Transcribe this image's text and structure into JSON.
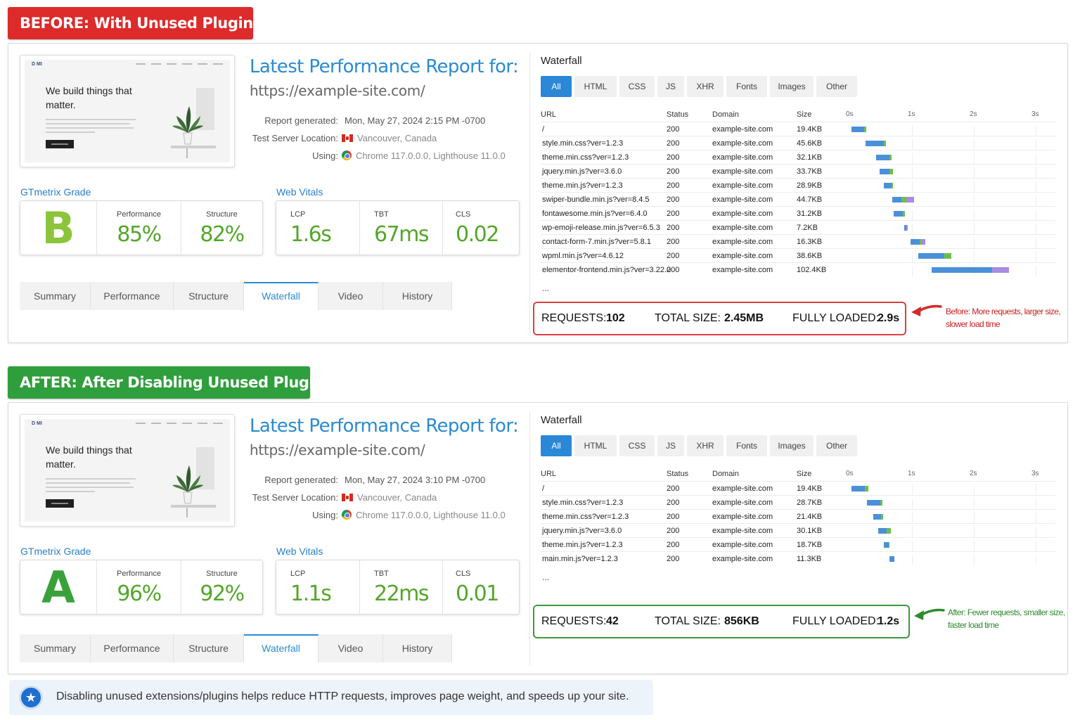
{
  "before": {
    "banner": "BEFORE: With Unused Plugins",
    "report": {
      "thumb": {
        "logo": "D MI",
        "headline": "We build things that matter."
      },
      "title": "Latest Performance Report for:",
      "url": "https://example-site.com/",
      "meta": [
        {
          "label": "Report generated:",
          "value": "Mon, May 27, 2024 2:15 PM -0700"
        },
        {
          "label": "Test Server Location:",
          "value": "Vancouver, Canada"
        },
        {
          "label": "Using:",
          "value": "Chrome 117.0.0.0, Lighthouse 11.0.0"
        }
      ],
      "grade_label": "GTmetrix Grade",
      "grade": "B",
      "performance_label": "Performance",
      "performance": "85%",
      "structure_label": "Structure",
      "structure": "82%",
      "vitals_label": "Web Vitals",
      "lcp_label": "LCP",
      "lcp": "1.6s",
      "tbt_label": "TBT",
      "tbt": "67ms",
      "cls_label": "CLS",
      "cls": "0.02",
      "tabs": [
        "Summary",
        "Performance",
        "Structure",
        "Waterfall",
        "Video",
        "History"
      ],
      "active_tab": "Waterfall"
    },
    "waterfall": {
      "title": "Waterfall",
      "filters": [
        "All",
        "HTML",
        "CSS",
        "JS",
        "XHR",
        "Fonts",
        "Images",
        "Other"
      ],
      "columns": [
        "URL",
        "Status",
        "Domain",
        "Size"
      ],
      "ticks": [
        "0s",
        "1s",
        "2s",
        "3s"
      ],
      "rows": [
        {
          "url": "/",
          "status": "200",
          "domain": "example-site.com",
          "size": "19.4KB",
          "start": 0.02,
          "segments": [
            [
              0.21,
              "b"
            ],
            [
              0.03,
              "g"
            ]
          ]
        },
        {
          "url": "style.min.css?ver=1.2.3",
          "status": "200",
          "domain": "example-site.com",
          "size": "45.6KB",
          "start": 0.25,
          "segments": [
            [
              0.3,
              "b"
            ],
            [
              0.03,
              "g"
            ]
          ]
        },
        {
          "url": "theme.min.css?ver=1.2.3",
          "status": "200",
          "domain": "example-site.com",
          "size": "32.1KB",
          "start": 0.42,
          "segments": [
            [
              0.22,
              "b"
            ],
            [
              0.03,
              "g"
            ]
          ]
        },
        {
          "url": "jquery.min.js?ver=3.6.0",
          "status": "200",
          "domain": "example-site.com",
          "size": "33.7KB",
          "start": 0.48,
          "segments": [
            [
              0.16,
              "b"
            ],
            [
              0.05,
              "g"
            ]
          ]
        },
        {
          "url": "theme.min.js?ver=1.2.3",
          "status": "200",
          "domain": "example-site.com",
          "size": "28.9KB",
          "start": 0.55,
          "segments": [
            [
              0.12,
              "b"
            ],
            [
              0.02,
              "g"
            ]
          ]
        },
        {
          "url": "swiper-bundle.min.js?ver=8.4.5",
          "status": "200",
          "domain": "example-site.com",
          "size": "44.7KB",
          "start": 0.68,
          "segments": [
            [
              0.15,
              "b"
            ],
            [
              0.08,
              "g"
            ],
            [
              0.13,
              "p"
            ]
          ]
        },
        {
          "url": "fontawesome.min.js?ver=6.4.0",
          "status": "200",
          "domain": "example-site.com",
          "size": "31.2KB",
          "start": 0.7,
          "segments": [
            [
              0.15,
              "b"
            ],
            [
              0.04,
              "g"
            ]
          ]
        },
        {
          "url": "wp-emoji-release.min.js?ver=6.5.3",
          "status": "200",
          "domain": "example-site.com",
          "size": "7.2KB",
          "start": 0.88,
          "segments": [
            [
              0.03,
              "b"
            ],
            [
              0.02,
              "p"
            ]
          ]
        },
        {
          "url": "contact-form-7.min.js?ver=5.8.1",
          "status": "200",
          "domain": "example-site.com",
          "size": "16.3KB",
          "start": 0.98,
          "segments": [
            [
              0.14,
              "b"
            ],
            [
              0.04,
              "g"
            ],
            [
              0.06,
              "p"
            ]
          ]
        },
        {
          "url": "wpml.min.js?ver=4.6.12",
          "status": "200",
          "domain": "example-site.com",
          "size": "38.6KB",
          "start": 1.1,
          "segments": [
            [
              0.42,
              "b"
            ],
            [
              0.12,
              "g"
            ]
          ]
        },
        {
          "url": "elementor-frontend.min.js?ver=3.22.0",
          "status": "200",
          "domain": "example-site.com",
          "size": "102.4KB",
          "start": 1.32,
          "segments": [
            [
              0.97,
              "b"
            ],
            [
              0.28,
              "p"
            ]
          ]
        }
      ],
      "more": "..."
    },
    "summary": {
      "requests_label": "REQUESTS:",
      "requests": "102",
      "size_label": "TOTAL SIZE:",
      "size": "2.45MB",
      "loaded_label": "FULLY LOADED:",
      "loaded": "2.9s"
    },
    "note": [
      "Before: More requests, larger size,",
      "slower load time"
    ]
  },
  "after": {
    "banner": "AFTER: After Disabling Unused Plugins",
    "report": {
      "thumb": {
        "logo": "D MI",
        "headline": "We build things that matter."
      },
      "title": "Latest Performance Report for:",
      "url": "https://example-site.com/",
      "meta": [
        {
          "label": "Report generated:",
          "value": "Mon, May 27, 2024 3:10 PM -0700"
        },
        {
          "label": "Test Server Location:",
          "value": "Vancouver, Canada"
        },
        {
          "label": "Using:",
          "value": "Chrome 117.0.0.0, Lighthouse 11.0.0"
        }
      ],
      "grade_label": "GTmetrix Grade",
      "grade": "A",
      "performance_label": "Performance",
      "performance": "96%",
      "structure_label": "Structure",
      "structure": "92%",
      "vitals_label": "Web Vitals",
      "lcp_label": "LCP",
      "lcp": "1.1s",
      "tbt_label": "TBT",
      "tbt": "22ms",
      "cls_label": "CLS",
      "cls": "0.01",
      "tabs": [
        "Summary",
        "Performance",
        "Structure",
        "Waterfall",
        "Video",
        "History"
      ],
      "active_tab": "Waterfall"
    },
    "waterfall": {
      "title": "Waterfall",
      "filters": [
        "All",
        "HTML",
        "CSS",
        "JS",
        "XHR",
        "Fonts",
        "Images",
        "Other"
      ],
      "columns": [
        "URL",
        "Status",
        "Domain",
        "Size"
      ],
      "ticks": [
        "0s",
        "1s",
        "2s",
        "3s"
      ],
      "rows": [
        {
          "url": "/",
          "status": "200",
          "domain": "example-site.com",
          "size": "19.4KB",
          "start": 0.02,
          "segments": [
            [
              0.22,
              "b"
            ],
            [
              0.05,
              "g"
            ]
          ]
        },
        {
          "url": "style.min.css?ver=1.2.3",
          "status": "200",
          "domain": "example-site.com",
          "size": "28.7KB",
          "start": 0.27,
          "segments": [
            [
              0.22,
              "b"
            ],
            [
              0.03,
              "g"
            ]
          ]
        },
        {
          "url": "theme.min.css?ver=1.2.3",
          "status": "200",
          "domain": "example-site.com",
          "size": "21.4KB",
          "start": 0.38,
          "segments": [
            [
              0.12,
              "b"
            ],
            [
              0.03,
              "g"
            ]
          ]
        },
        {
          "url": "jquery.min.js?ver=3.6.0",
          "status": "200",
          "domain": "example-site.com",
          "size": "30.1KB",
          "start": 0.46,
          "segments": [
            [
              0.13,
              "b"
            ],
            [
              0.07,
              "g"
            ]
          ]
        },
        {
          "url": "theme.min.js?ver=1.2.3",
          "status": "200",
          "domain": "example-site.com",
          "size": "18.7KB",
          "start": 0.54,
          "segments": [
            [
              0.09,
              "b"
            ],
            [
              0.01,
              "g"
            ]
          ]
        },
        {
          "url": "main.min.js?ver=1.2.3",
          "status": "200",
          "domain": "example-site.com",
          "size": "11.3KB",
          "start": 0.64,
          "segments": [
            [
              0.08,
              "b"
            ]
          ]
        }
      ],
      "more": "..."
    },
    "summary": {
      "requests_label": "REQUESTS:",
      "requests": "42",
      "size_label": "TOTAL SIZE:",
      "size": "856KB",
      "loaded_label": "FULLY LOADED:",
      "loaded": "1.2s"
    },
    "note": [
      "After: Fewer requests, smaller size,",
      "faster load time"
    ]
  },
  "footer": {
    "icon": "star-badge-icon",
    "text": "Disabling unused extensions/plugins helps reduce HTTP requests, improves page weight, and speeds up your site."
  },
  "colors": {
    "before_accent": "#dd2a2a",
    "after_accent": "#2f9e3c",
    "link_blue": "#2a8bd1",
    "metric_green": "#54a62a"
  }
}
